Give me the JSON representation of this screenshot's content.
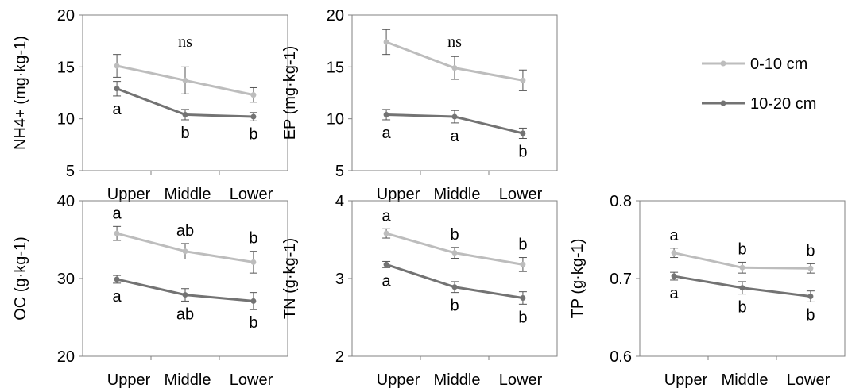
{
  "colors": {
    "series_light": "#bdbdbd",
    "series_dark": "#737373",
    "axis": "#808080"
  },
  "legend": {
    "placement": "top-right",
    "entries": [
      "0-10 cm",
      "10-20 cm"
    ]
  },
  "chart_data": [
    {
      "type": "line",
      "ylabel": "NH4+ (mg·kg-1)",
      "categories": [
        "Upper",
        "Middle",
        "Lower"
      ],
      "ylim": [
        5,
        20
      ],
      "yticks": [
        5,
        10,
        15,
        20
      ],
      "annotation": "ns",
      "series": [
        {
          "name": "0-10 cm",
          "values": [
            15.1,
            13.7,
            12.3
          ],
          "errors": [
            1.1,
            1.3,
            0.7
          ],
          "letters": [
            "",
            "",
            ""
          ]
        },
        {
          "name": "10-20 cm",
          "values": [
            12.9,
            10.4,
            10.2
          ],
          "errors": [
            0.7,
            0.5,
            0.4
          ],
          "letters": [
            "a",
            "b",
            "b"
          ]
        }
      ]
    },
    {
      "type": "line",
      "ylabel": "EP (mg·kg-1)",
      "categories": [
        "Upper",
        "Middle",
        "Lower"
      ],
      "ylim": [
        5,
        20
      ],
      "yticks": [
        5,
        10,
        15,
        20
      ],
      "annotation": "ns",
      "series": [
        {
          "name": "0-10 cm",
          "values": [
            17.4,
            14.9,
            13.7
          ],
          "errors": [
            1.2,
            1.1,
            1.0
          ],
          "letters": [
            "",
            "",
            ""
          ]
        },
        {
          "name": "10-20 cm",
          "values": [
            10.4,
            10.2,
            8.6
          ],
          "errors": [
            0.5,
            0.6,
            0.5
          ],
          "letters": [
            "a",
            "a",
            "b"
          ]
        }
      ]
    },
    {
      "type": "line",
      "ylabel": "OC (g·kg-1)",
      "categories": [
        "Upper",
        "Middle",
        "Lower"
      ],
      "ylim": [
        20,
        40
      ],
      "yticks": [
        20,
        30,
        40
      ],
      "annotation": "",
      "series": [
        {
          "name": "0-10 cm",
          "values": [
            35.8,
            33.5,
            32.1
          ],
          "errors": [
            0.9,
            1.0,
            1.4
          ],
          "letters": [
            "a",
            "ab",
            "b"
          ]
        },
        {
          "name": "10-20 cm",
          "values": [
            29.9,
            27.9,
            27.1
          ],
          "errors": [
            0.5,
            0.8,
            1.1
          ],
          "letters": [
            "a",
            "ab",
            "b"
          ]
        }
      ]
    },
    {
      "type": "line",
      "ylabel": "TN (g·kg-1)",
      "categories": [
        "Upper",
        "Middle",
        "Lower"
      ],
      "ylim": [
        2,
        4
      ],
      "yticks": [
        2,
        3,
        4
      ],
      "annotation": "",
      "series": [
        {
          "name": "0-10 cm",
          "values": [
            3.58,
            3.33,
            3.18
          ],
          "errors": [
            0.06,
            0.07,
            0.09
          ],
          "letters": [
            "a",
            "b",
            "b"
          ]
        },
        {
          "name": "10-20 cm",
          "values": [
            3.18,
            2.89,
            2.75
          ],
          "errors": [
            0.04,
            0.07,
            0.08
          ],
          "letters": [
            "a",
            "b",
            "b"
          ]
        }
      ]
    },
    {
      "type": "line",
      "ylabel": "TP (g·kg-1)",
      "categories": [
        "Upper",
        "Middle",
        "Lower"
      ],
      "ylim": [
        0.6,
        0.8
      ],
      "yticks": [
        0.6,
        0.7,
        0.8
      ],
      "annotation": "",
      "series": [
        {
          "name": "0-10 cm",
          "values": [
            0.733,
            0.714,
            0.713
          ],
          "errors": [
            0.006,
            0.007,
            0.006
          ],
          "letters": [
            "a",
            "b",
            "b"
          ]
        },
        {
          "name": "10-20 cm",
          "values": [
            0.703,
            0.688,
            0.677
          ],
          "errors": [
            0.005,
            0.008,
            0.007
          ],
          "letters": [
            "a",
            "b",
            "b"
          ]
        }
      ]
    }
  ]
}
